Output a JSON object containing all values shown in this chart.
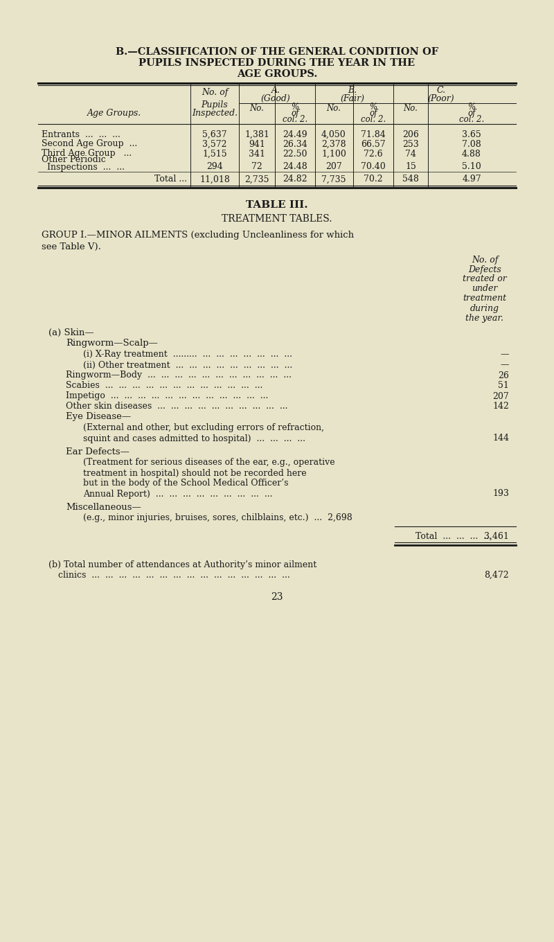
{
  "bg_color": "#e8e4c9",
  "text_color": "#1a1a1a",
  "title_line1": "B.—CLASSIFICATION OF THE GENERAL CONDITION OF",
  "title_line2": "PUPILS INSPECTED DURING THE YEAR IN THE",
  "title_line3": "AGE GROUPS.",
  "table1_data": [
    [
      "Entrants  ...  ...  ...",
      "5,637",
      "1,381",
      "24.49",
      "4,050",
      "71.84",
      "206",
      "3.65"
    ],
    [
      "Second Age Group  ...",
      "3,572",
      "941",
      "26.34",
      "2,378",
      "66.57",
      "253",
      "7.08"
    ],
    [
      "Third Age Group   ...",
      "1,515",
      "341",
      "22.50",
      "1,100",
      "72.6",
      "74",
      "4.88"
    ],
    [
      "Other Periodic",
      "",
      "",
      "",
      "",
      "",
      "",
      ""
    ],
    [
      "  Inspections  ...  ...",
      "294",
      "72",
      "24.48",
      "207",
      "70.40",
      "15",
      "5.10"
    ],
    [
      "Total ...",
      "11,018",
      "2,735",
      "24.82",
      "7,735",
      "70.2",
      "548",
      "4.97"
    ]
  ],
  "table3_title": "TABLE III.",
  "table3_subtitle": "TREATMENT TABLES.",
  "group1_heading": "GROUP I.—MINOR AILMENTS (excluding Uncleanliness for which",
  "group1_heading2": "see Table V).",
  "xray": "(i) X-Ray treatment  .........  ...  ...  ...  ...  ...  ...  ...",
  "xray_val": "—",
  "other_treatment": "(ii) Other treatment  ...  ...  ...  ...  ...  ...  ...  ...  ...",
  "other_treatment_val": "—",
  "ringworm_body": "Ringworm—Body  ...  ...  ...  ...  ...  ...  ...  ...  ...  ...  ...",
  "ringworm_body_val": "26",
  "scabies": "Scabies  ...  ...  ...  ...  ...  ...  ...  ...  ...  ...  ...  ...",
  "scabies_val": "51",
  "impetigo": "Impetigo  ...  ...  ...  ...  ...  ...  ...  ...  ...  ...  ...  ...",
  "impetigo_val": "207",
  "other_skin": "Other skin diseases  ...  ...  ...  ...  ...  ...  ...  ...  ...  ...",
  "other_skin_val": "142",
  "eye_disease_desc": "(External and other, but excluding errors of refraction,",
  "eye_disease_desc2": "squint and cases admitted to hospital)  ...  ...  ...  ...",
  "eye_disease_val": "144",
  "ear_defects_desc1": "(Treatment for serious diseases of the ear, e.g., operative",
  "ear_defects_desc2": "treatment in hospital) should not be recorded here",
  "ear_defects_desc3": "but in the body of the School Medical Officer’s",
  "ear_defects_desc4": "Annual Report)  ...  ...  ...  ...  ...  ...  ...  ...  ...",
  "ear_defects_val": "193",
  "misc_desc": "(e.g., minor injuries, bruises, sores, chilblains, etc.)  ...  2,698",
  "total_label": "Total  ...  ...  ...  ...",
  "total_val": "3,461",
  "b_label": "(b) Total number of attendances at Authority’s minor ailment",
  "b_desc": "clinics  ...  ...  ...  ...  ...  ...  ...  ...  ...  ...  ...  ...  ...  ...  ...",
  "b_val": "8,472",
  "page_num": "23"
}
